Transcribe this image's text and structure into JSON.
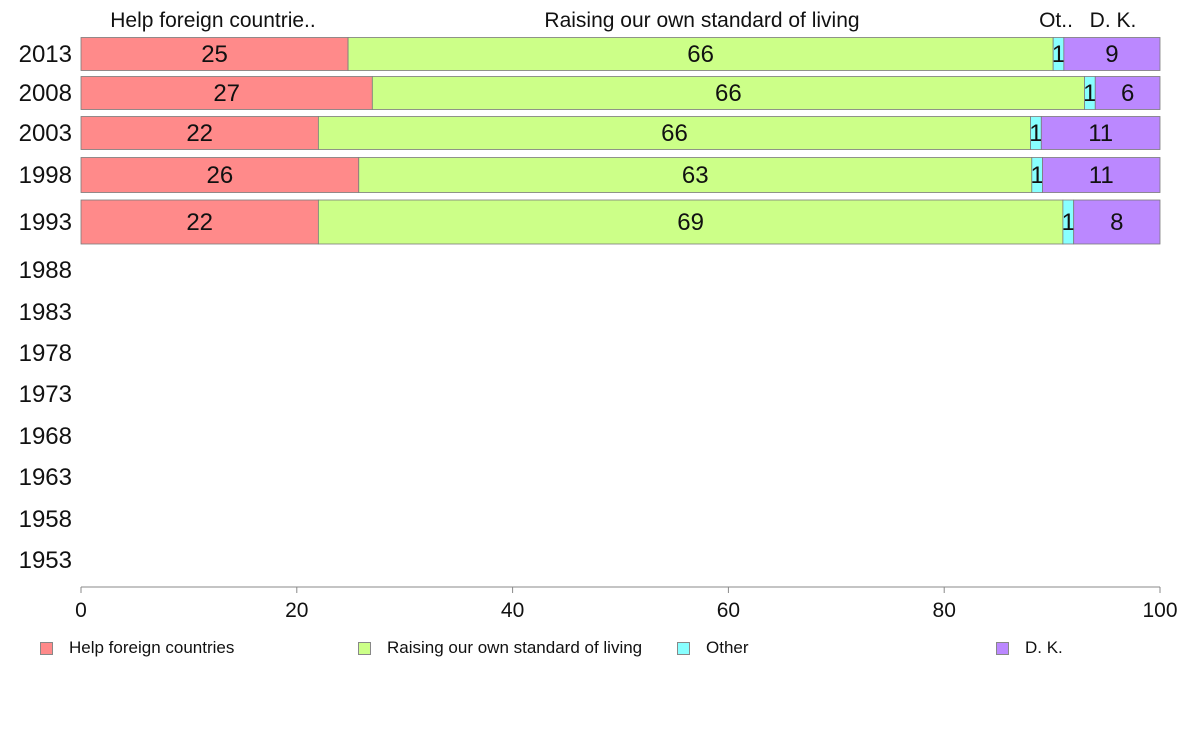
{
  "chart_data": {
    "type": "bar",
    "orientation": "horizontal",
    "stacked": true,
    "categories": [
      "2013",
      "2008",
      "2003",
      "1998",
      "1993",
      "1988",
      "1983",
      "1978",
      "1973",
      "1968",
      "1963",
      "1958",
      "1953"
    ],
    "series": [
      {
        "name": "Help foreign countries",
        "header": "Help foreign countrie..",
        "color": "#ff8a8a",
        "values": [
          25,
          27,
          22,
          26,
          22,
          null,
          null,
          null,
          null,
          null,
          null,
          null,
          null
        ]
      },
      {
        "name": "Raising our own standard of living",
        "header": "Raising our own standard of living",
        "color": "#ccff88",
        "values": [
          66,
          66,
          66,
          63,
          69,
          null,
          null,
          null,
          null,
          null,
          null,
          null,
          null
        ]
      },
      {
        "name": "Other",
        "header": "Ot..",
        "color": "#88ffff",
        "values": [
          1,
          1,
          1,
          1,
          1,
          null,
          null,
          null,
          null,
          null,
          null,
          null,
          null
        ]
      },
      {
        "name": "D. K.",
        "header": "D. K.",
        "color": "#bb88ff",
        "values": [
          9,
          6,
          11,
          11,
          8,
          null,
          null,
          null,
          null,
          null,
          null,
          null,
          null
        ]
      }
    ],
    "xlim": [
      0,
      100
    ],
    "xticks": [
      0,
      20,
      40,
      60,
      80,
      100
    ],
    "grid": false,
    "legend_position": "bottom"
  }
}
